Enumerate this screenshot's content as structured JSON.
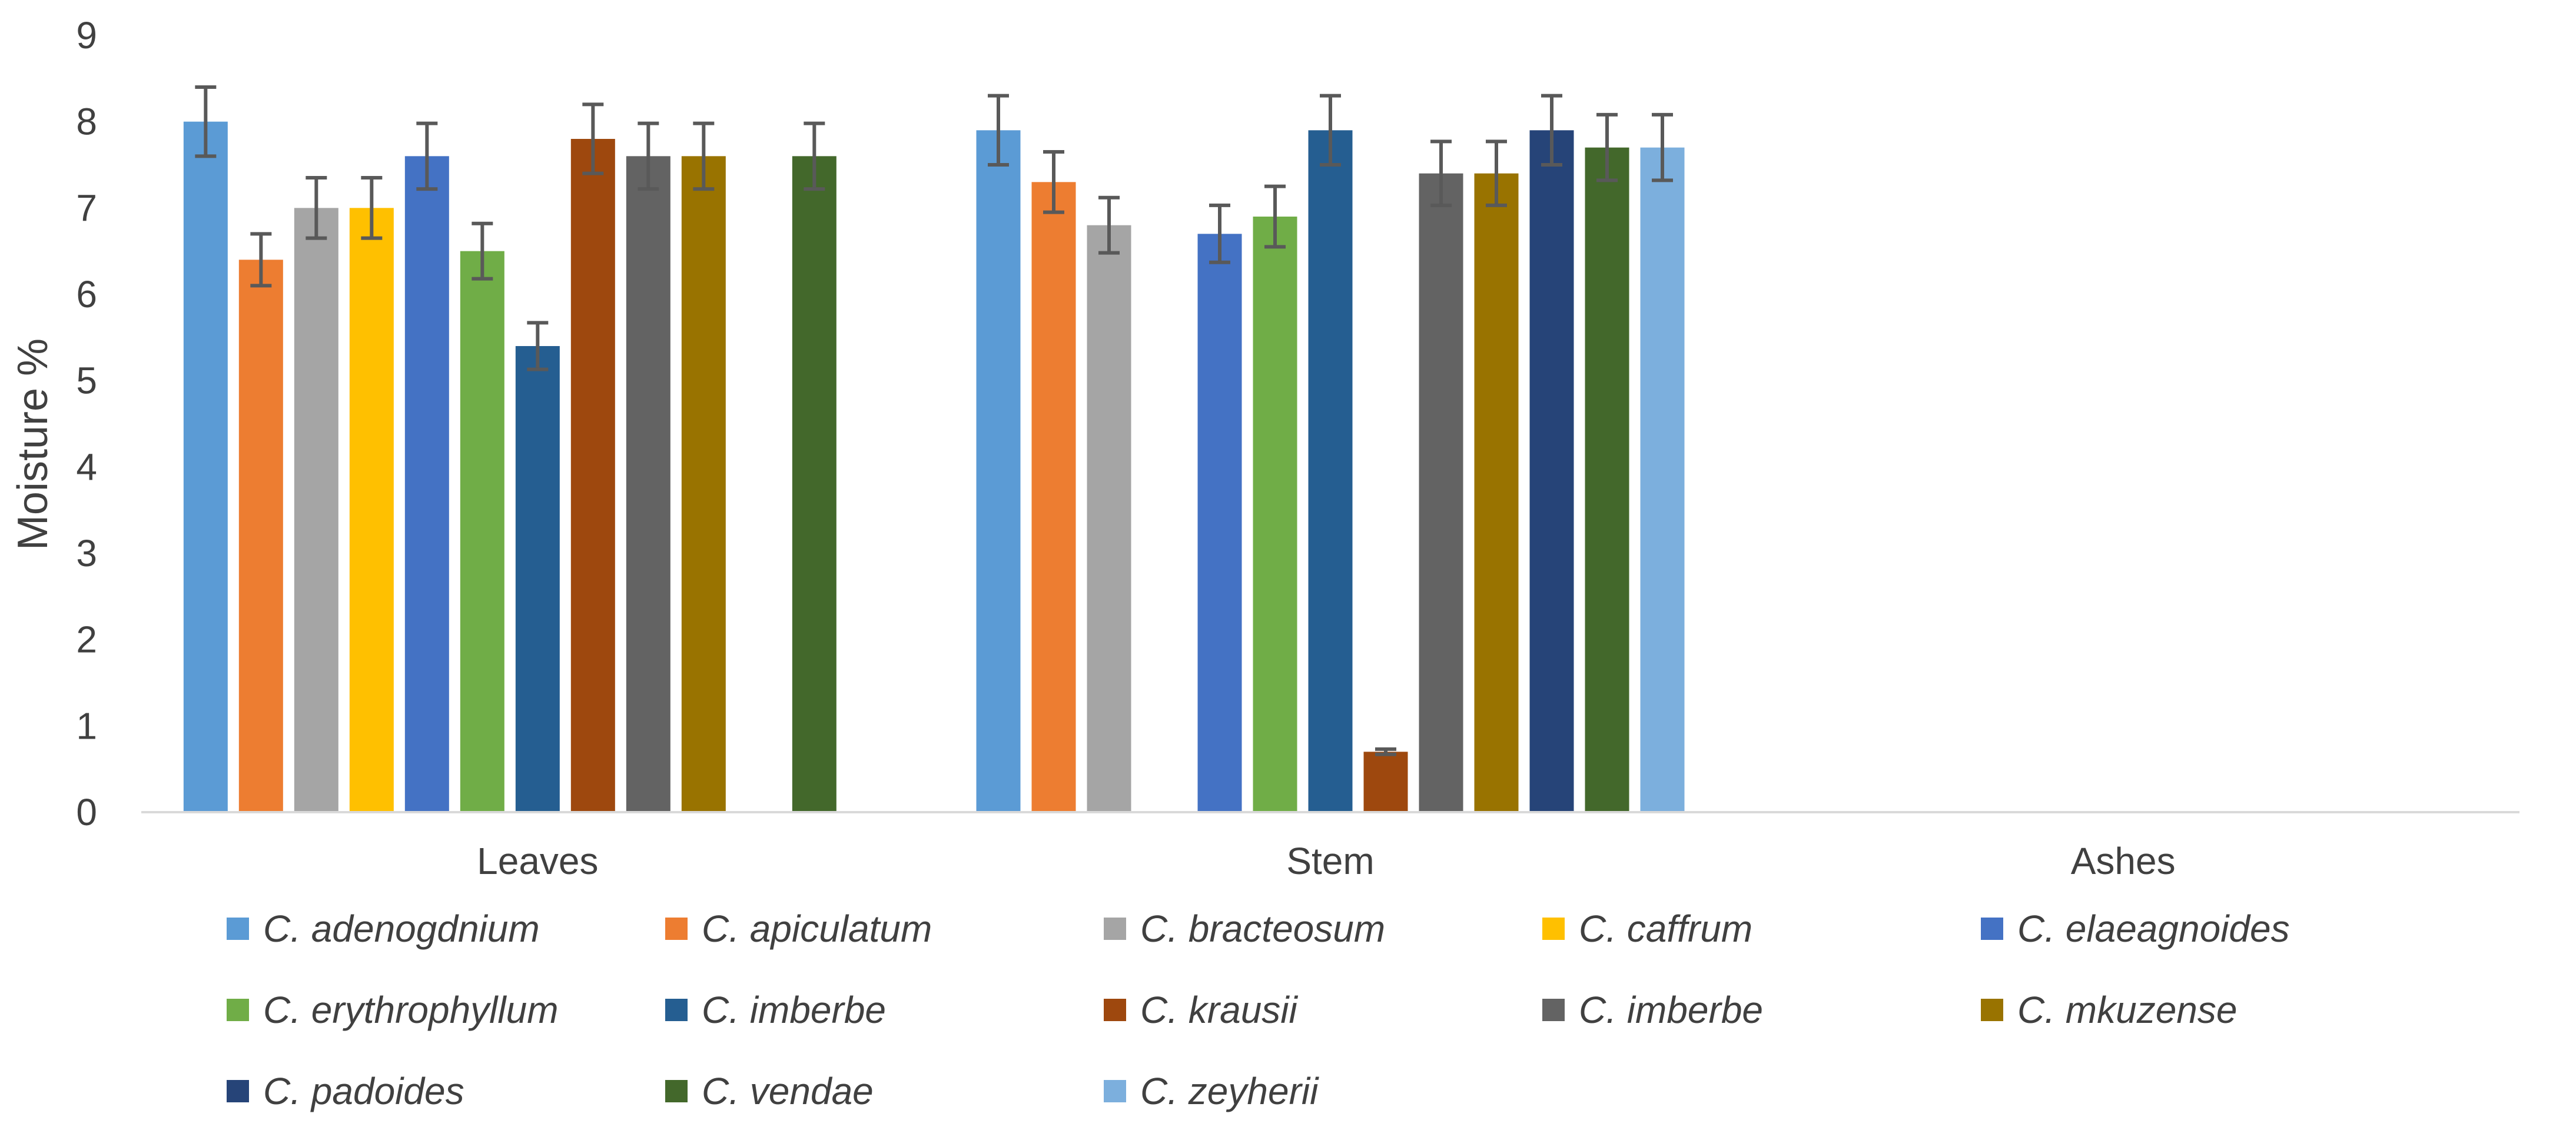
{
  "chart_data": {
    "type": "bar",
    "title": "",
    "xlabel": "",
    "ylabel": "Moisture %",
    "ylim": [
      0,
      9
    ],
    "yticks": [
      "0",
      "1",
      "2",
      "3",
      "4",
      "5",
      "6",
      "7",
      "8",
      "9"
    ],
    "grid": false,
    "legend_position": "bottom",
    "categories": [
      "Leaves",
      "Stem",
      "Ashes"
    ],
    "series": [
      {
        "name": "C. adenogdnium",
        "color": "#5B9BD5",
        "values": [
          8.0,
          7.9,
          null
        ],
        "errors": [
          0.4,
          0.4,
          null
        ]
      },
      {
        "name": "C. apiculatum",
        "color": "#ED7D31",
        "values": [
          6.4,
          7.3,
          null
        ],
        "errors": [
          0.3,
          0.35,
          null
        ]
      },
      {
        "name": "C. bracteosum",
        "color": "#A5A5A5",
        "values": [
          7.0,
          6.8,
          null
        ],
        "errors": [
          0.35,
          0.32,
          null
        ]
      },
      {
        "name": "C. caffrum",
        "color": "#FFC000",
        "values": [
          7.0,
          null,
          null
        ],
        "errors": [
          0.35,
          null,
          null
        ]
      },
      {
        "name": "C. elaeagnoides",
        "color": "#4472C4",
        "values": [
          7.6,
          6.7,
          null
        ],
        "errors": [
          0.38,
          0.33,
          null
        ]
      },
      {
        "name": "C. erythrophyllum",
        "color": "#70AD47",
        "values": [
          6.5,
          6.9,
          null
        ],
        "errors": [
          0.32,
          0.35,
          null
        ]
      },
      {
        "name": "C. imberbe",
        "color": "#255E91",
        "values": [
          5.4,
          7.9,
          null
        ],
        "errors": [
          0.27,
          0.4,
          null
        ]
      },
      {
        "name": "C. krausii",
        "color": "#9E480E",
        "values": [
          7.8,
          0.7,
          null
        ],
        "errors": [
          0.4,
          0.03,
          null
        ]
      },
      {
        "name": "C. imberbe",
        "color": "#636363",
        "values": [
          7.6,
          7.4,
          null
        ],
        "errors": [
          0.38,
          0.37,
          null
        ]
      },
      {
        "name": "C. mkuzense",
        "color": "#997300",
        "values": [
          7.6,
          7.4,
          null
        ],
        "errors": [
          0.38,
          0.37,
          null
        ]
      },
      {
        "name": "C. padoides",
        "color": "#264478",
        "values": [
          null,
          7.9,
          null
        ],
        "errors": [
          null,
          0.4,
          null
        ]
      },
      {
        "name": "C. vendae",
        "color": "#43682B",
        "values": [
          7.6,
          7.7,
          null
        ],
        "errors": [
          0.38,
          0.38,
          null
        ]
      },
      {
        "name": "C. zeyherii",
        "color": "#7CAFDD",
        "values": [
          null,
          7.7,
          null
        ],
        "errors": [
          null,
          0.38,
          null
        ]
      }
    ]
  }
}
